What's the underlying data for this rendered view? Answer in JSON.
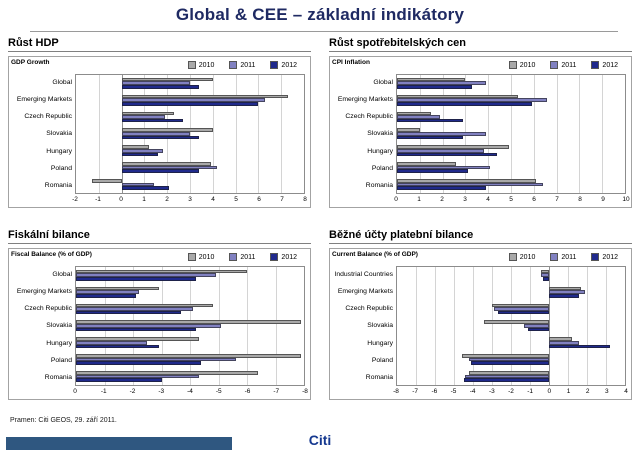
{
  "slide": {
    "title": "Global & CEE – základní indikátory",
    "footer_source": "Pramen: Citi GEOS, 29. září 2011.",
    "brand": "Citi"
  },
  "colors": {
    "title": "#1F2A63",
    "brand": "#15388F",
    "accent_bar": "#2F5780",
    "series": {
      "2010": "#A9A9A9",
      "2011": "#8181C1",
      "2012": "#202A8C"
    }
  },
  "chart_data": [
    {
      "type": "bar",
      "orientation": "horizontal",
      "panel_title": "Růst HDP",
      "axis_label": "GDP Growth",
      "categories": [
        "Global",
        "Emerging Markets",
        "Czech Republic",
        "Slovakia",
        "Hungary",
        "Poland",
        "Romania"
      ],
      "series": [
        {
          "name": "2010",
          "values": [
            4.0,
            7.3,
            2.3,
            4.0,
            1.2,
            3.9,
            -1.3
          ]
        },
        {
          "name": "2011",
          "values": [
            3.0,
            6.3,
            1.9,
            3.0,
            1.8,
            4.2,
            1.4
          ]
        },
        {
          "name": "2012",
          "values": [
            3.4,
            6.0,
            2.7,
            3.4,
            1.6,
            3.4,
            2.1
          ]
        }
      ],
      "axis_range": [
        -2,
        8
      ],
      "ticks": [
        -2,
        -1,
        0,
        1,
        2,
        3,
        4,
        5,
        6,
        7,
        8
      ],
      "grid": true,
      "legend_position": "top-right"
    },
    {
      "type": "bar",
      "orientation": "horizontal",
      "panel_title": "Růst spotřebitelských cen",
      "axis_label": "CPI Inflation",
      "categories": [
        "Global",
        "Emerging Markets",
        "Czech Republic",
        "Slovakia",
        "Hungary",
        "Poland",
        "Romania"
      ],
      "series": [
        {
          "name": "2010",
          "values": [
            3.0,
            5.3,
            1.5,
            1.0,
            4.9,
            2.6,
            6.1
          ]
        },
        {
          "name": "2011",
          "values": [
            3.9,
            6.6,
            1.9,
            3.9,
            3.8,
            4.1,
            6.4
          ]
        },
        {
          "name": "2012",
          "values": [
            3.3,
            5.9,
            2.9,
            2.9,
            4.4,
            3.1,
            3.9
          ]
        }
      ],
      "axis_range": [
        0,
        10
      ],
      "ticks": [
        0,
        1,
        2,
        3,
        4,
        5,
        6,
        7,
        8,
        9,
        10
      ],
      "grid": true,
      "legend_position": "top-right"
    },
    {
      "type": "bar",
      "orientation": "horizontal",
      "panel_title": "Fiskální bilance",
      "axis_label": "Fiscal Balance (% of GDP)",
      "categories": [
        "Global",
        "Emerging Markets",
        "Czech Republic",
        "Slovakia",
        "Hungary",
        "Poland",
        "Romania"
      ],
      "series": [
        {
          "name": "2010",
          "values": [
            -6.0,
            -2.9,
            -4.8,
            -7.9,
            -4.3,
            -7.9,
            -6.4
          ]
        },
        {
          "name": "2011",
          "values": [
            -4.9,
            -2.2,
            -4.1,
            -5.1,
            -2.5,
            -5.6,
            -4.3
          ]
        },
        {
          "name": "2012",
          "values": [
            -4.2,
            -2.1,
            -3.7,
            -4.2,
            -2.9,
            -4.4,
            -3.0
          ]
        }
      ],
      "axis_range": [
        0,
        -8
      ],
      "ticks": [
        0,
        -1,
        -2,
        -3,
        -4,
        -5,
        -6,
        -7,
        -8
      ],
      "grid": true,
      "legend_position": "top-right"
    },
    {
      "type": "bar",
      "orientation": "horizontal",
      "panel_title": "Běžné účty platební bilance",
      "axis_label": "Current Balance (% of GDP)",
      "categories": [
        "Industrial Countries",
        "Emerging Markets",
        "Czech Republic",
        "Slovakia",
        "Hungary",
        "Poland",
        "Romania"
      ],
      "series": [
        {
          "name": "2010",
          "values": [
            -0.4,
            1.7,
            -3.0,
            -3.4,
            1.2,
            -4.6,
            -4.2
          ]
        },
        {
          "name": "2011",
          "values": [
            -0.4,
            1.9,
            -2.9,
            -1.3,
            1.6,
            -4.2,
            -4.4
          ]
        },
        {
          "name": "2012",
          "values": [
            -0.3,
            1.6,
            -2.7,
            -1.1,
            3.2,
            -4.1,
            -4.5
          ]
        }
      ],
      "axis_range": [
        -8,
        4
      ],
      "ticks": [
        -8,
        -7,
        -6,
        -5,
        -4,
        -3,
        -2,
        -1,
        0,
        1,
        2,
        3,
        4
      ],
      "grid": true,
      "legend_position": "top-right"
    }
  ]
}
